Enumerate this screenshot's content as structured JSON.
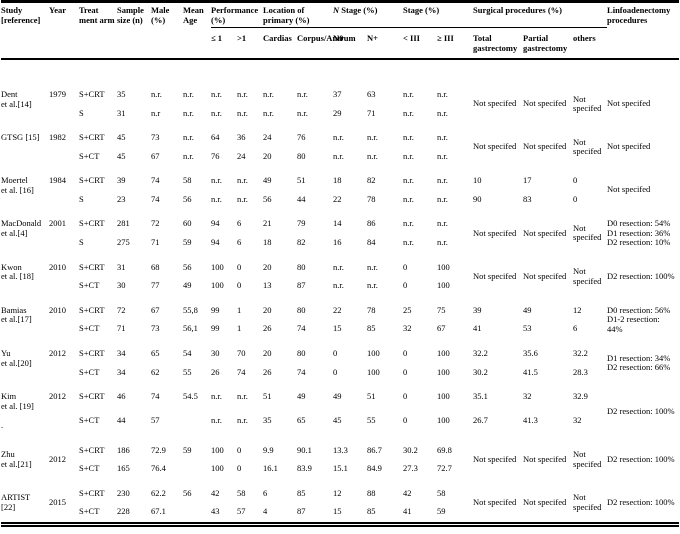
{
  "header": {
    "study": "Study [reference]",
    "year": "Year",
    "arm": "Treat ment arm",
    "sample": "Sample size (n)",
    "male": "Male (%)",
    "age": "Mean Age",
    "performance": "Performance (%)",
    "location": "Location of primary (%)",
    "nstage_n": "N",
    "nstage_rest": " Stage (%)",
    "stage": "Stage (%)",
    "surgical": "Surgical procedures (%)",
    "linfo": "Linfoadenectomy procedures",
    "sub": {
      "le1": "≤ 1",
      "gt1": ">1",
      "cardias": "Cardias",
      "corpus": "Corpus/Antrum",
      "n0": "N0",
      "nplus": "N+",
      "lt3": "< III",
      "ge3": "≥ III",
      "total": "Total gastrectomy",
      "partial": "Partial gastrectomy",
      "others": "others"
    }
  },
  "table": {
    "groups": [
      {
        "study": "Dent\net al.[14]",
        "year": "1979",
        "label_valign": "top",
        "rows": [
          {
            "arm": "S+CRT",
            "n": "35",
            "male": "n.r.",
            "age": "n.r.",
            "perf_le1": "n.r.",
            "perf_gt1": "n.r.",
            "cardias": "n.r.",
            "corpus": "n.r.",
            "n0": "37",
            "n_plus": "63",
            "stage_lt3": "n.r.",
            "stage_ge3": "n.r."
          },
          {
            "arm": "S",
            "n": "31",
            "male": "n.r",
            "age": "n.r.",
            "perf_le1": "n.r.",
            "perf_gt1": "n.r.",
            "cardias": "n.r.",
            "corpus": "n.r.",
            "n0": "29",
            "n_plus": "71",
            "stage_lt3": "n.r.",
            "stage_ge3": "n.r."
          }
        ],
        "surgical_span": {
          "total": "Not specifed",
          "partial": "Not specifed",
          "others": "Not specifed"
        },
        "linfo": "Not specifed"
      },
      {
        "study": "GTSG [15]",
        "year": "1982",
        "label_valign": "top",
        "rows": [
          {
            "arm": "S+CRT",
            "n": "45",
            "male": "73",
            "age": "n.r.",
            "perf_le1": "64",
            "perf_gt1": "36",
            "cardias": "24",
            "corpus": "76",
            "n0": "n.r.",
            "n_plus": "n.r.",
            "stage_lt3": "n.r.",
            "stage_ge3": "n.r."
          },
          {
            "arm": "S+CT",
            "n": "45",
            "male": "67",
            "age": "n.r.",
            "perf_le1": "76",
            "perf_gt1": "24",
            "cardias": "20",
            "corpus": "80",
            "n0": "n.r.",
            "n_plus": "n.r.",
            "stage_lt3": "n.r.",
            "stage_ge3": "n.r."
          }
        ],
        "surgical_span": {
          "total": "Not specifed",
          "partial": "Not specifed",
          "others": "Not specifed"
        },
        "linfo": "Not specifed"
      },
      {
        "study": "Moertel\net al. [16]",
        "year": "1984",
        "label_valign": "top",
        "rows": [
          {
            "arm": "S+CRT",
            "n": "39",
            "male": "74",
            "age": "58",
            "perf_le1": "n.r.",
            "perf_gt1": "n.r.",
            "cardias": "49",
            "corpus": "51",
            "n0": "18",
            "n_plus": "82",
            "stage_lt3": "n.r.",
            "stage_ge3": "n.r.",
            "total": "10",
            "partial": "17",
            "others": "0"
          },
          {
            "arm": "S",
            "n": "23",
            "male": "74",
            "age": "56",
            "perf_le1": "n.r.",
            "perf_gt1": "n.r.",
            "cardias": "56",
            "corpus": "44",
            "n0": "22",
            "n_plus": "78",
            "stage_lt3": "n.r.",
            "stage_ge3": "n.r.",
            "total": "90",
            "partial": "83",
            "others": "0"
          }
        ],
        "surgical_span": null,
        "linfo": "Not specifed"
      },
      {
        "study": "MacDonald\net al.[4]",
        "year": "2001",
        "label_valign": "top",
        "rows": [
          {
            "arm": "S+CRT",
            "n": "281",
            "male": "72",
            "age": "60",
            "perf_le1": "94",
            "perf_gt1": "6",
            "cardias": "21",
            "corpus": "79",
            "n0": "14",
            "n_plus": "86",
            "stage_lt3": "n.r.",
            "stage_ge3": "n.r."
          },
          {
            "arm": "S",
            "n": "275",
            "male": "71",
            "age": "59",
            "perf_le1": "94",
            "perf_gt1": "6",
            "cardias": "18",
            "corpus": "82",
            "n0": "16",
            "n_plus": "84",
            "stage_lt3": "n.r.",
            "stage_ge3": "n.r."
          }
        ],
        "surgical_span": {
          "total": "Not specifed",
          "partial": "Not specifed",
          "others": "Not specifed"
        },
        "linfo": "D0 resection: 54%\nD1 resection: 36%\nD2 resection: 10%"
      },
      {
        "study": "Kwon\net al. [18]",
        "year": "2010",
        "label_valign": "top",
        "rows": [
          {
            "arm": "S+CRT",
            "n": "31",
            "male": "68",
            "age": "56",
            "perf_le1": "100",
            "perf_gt1": "0",
            "cardias": "20",
            "corpus": "80",
            "n0": "n.r.",
            "n_plus": "n.r.",
            "stage_lt3": "0",
            "stage_ge3": "100"
          },
          {
            "arm": "S+CT",
            "n": "30",
            "male": "77",
            "age": "49",
            "perf_le1": "100",
            "perf_gt1": "0",
            "cardias": "13",
            "corpus": "87",
            "n0": "n.r.",
            "n_plus": "n.r.",
            "stage_lt3": "0",
            "stage_ge3": "100"
          }
        ],
        "surgical_span": {
          "total": "Not specifed",
          "partial": "Not specifed",
          "others": "Not specifed"
        },
        "linfo": "D2 resection: 100%"
      },
      {
        "study": "Bamias\net al.[17]",
        "year": "2010",
        "label_valign": "top",
        "rows": [
          {
            "arm": "S+CRT",
            "n": "72",
            "male": "67",
            "age": "55,8",
            "perf_le1": "99",
            "perf_gt1": "1",
            "cardias": "20",
            "corpus": "80",
            "n0": "22",
            "n_plus": "78",
            "stage_lt3": "25",
            "stage_ge3": "75",
            "total": "39",
            "partial": "49",
            "others": "12"
          },
          {
            "arm": "S+CT",
            "n": "71",
            "male": "73",
            "age": "56,1",
            "perf_le1": "99",
            "perf_gt1": "1",
            "cardias": "26",
            "corpus": "74",
            "n0": "15",
            "n_plus": "85",
            "stage_lt3": "32",
            "stage_ge3": "67",
            "total": "41",
            "partial": "53",
            "others": "6"
          }
        ],
        "surgical_span": null,
        "linfo": "D0 resection: 56%\nD1-2 resection: 44%"
      },
      {
        "study": "Yu\net al.[20]",
        "year": "2012",
        "label_valign": "top",
        "rows": [
          {
            "arm": "S+CRT",
            "n": "34",
            "male": "65",
            "age": "54",
            "perf_le1": "30",
            "perf_gt1": "70",
            "cardias": "20",
            "corpus": "80",
            "n0": "0",
            "n_plus": "100",
            "stage_lt3": "0",
            "stage_ge3": "100",
            "total": "32.2",
            "partial": "35.6",
            "others": "32.2"
          },
          {
            "arm": "S+CT",
            "n": "34",
            "male": "62",
            "age": "55",
            "perf_le1": "26",
            "perf_gt1": "74",
            "cardias": "26",
            "corpus": "74",
            "n0": "0",
            "n_plus": "100",
            "stage_lt3": "0",
            "stage_ge3": "100",
            "total": "30.2",
            "partial": "41.5",
            "others": "28.3"
          }
        ],
        "surgical_span": null,
        "linfo": "D1 resection: 34%\nD2 resection: 66%"
      },
      {
        "study": "Kim\net al. [19]",
        "study_note": ".",
        "year": "2012",
        "label_valign": "top",
        "rows": [
          {
            "arm": "S+CRT",
            "n": "46",
            "male": "74",
            "age": "54.5",
            "perf_le1": "n.r.",
            "perf_gt1": "n.r.",
            "cardias": "51",
            "corpus": "49",
            "n0": "49",
            "n_plus": "51",
            "stage_lt3": "0",
            "stage_ge3": "100",
            "total": "35.1",
            "partial": "32",
            "others": "32.9"
          },
          {
            "arm": "S+CT",
            "n": "44",
            "male": "57",
            "age": "",
            "perf_le1": "n.r.",
            "perf_gt1": "n.r.",
            "cardias": "35",
            "corpus": "65",
            "n0": "45",
            "n_plus": "55",
            "stage_lt3": "0",
            "stage_ge3": "100",
            "total": "26.7",
            "partial": "41.3",
            "others": "32"
          }
        ],
        "surgical_span": null,
        "linfo": "D2 resection: 100%"
      },
      {
        "study": "Zhu\net al.[21]",
        "year": "2012",
        "label_valign": "middle",
        "rows": [
          {
            "arm": "S+CRT",
            "n": "186",
            "male": "72.9",
            "age": "59",
            "perf_le1": "100",
            "perf_gt1": "0",
            "cardias": "9.9",
            "corpus": "90.1",
            "n0": "13.3",
            "n_plus": "86.7",
            "stage_lt3": "30.2",
            "stage_ge3": "69.8"
          },
          {
            "arm": "S+CT",
            "n": "165",
            "male": "76.4",
            "age": "",
            "perf_le1": "100",
            "perf_gt1": "0",
            "cardias": "16.1",
            "corpus": "83.9",
            "n0": "15.1",
            "n_plus": "84.9",
            "stage_lt3": "27.3",
            "stage_ge3": "72.7"
          }
        ],
        "surgical_span": {
          "total": "Not specifed",
          "partial": "Not specifed",
          "others": "Not specifed"
        },
        "linfo": "D2 resection: 100%"
      },
      {
        "study": "ARTIST\n[22]",
        "year": "2015",
        "label_valign": "middle",
        "age_span": "56",
        "rows": [
          {
            "arm": "S+CRT",
            "n": "230",
            "male": "62.2",
            "perf_le1": "42",
            "perf_gt1": "58",
            "cardias": "6",
            "corpus": "85",
            "n0": "12",
            "n_plus": "88",
            "stage_lt3": "42",
            "stage_ge3": "58"
          },
          {
            "arm": "S+CT",
            "n": "228",
            "male": "67.1",
            "perf_le1": "43",
            "perf_gt1": "57",
            "cardias": "4",
            "corpus": "87",
            "n0": "15",
            "n_plus": "85",
            "stage_lt3": "41",
            "stage_ge3": "59"
          }
        ],
        "surgical_span": {
          "total": "Not specifed",
          "partial": "Not specifed",
          "others": "Not specifed"
        },
        "linfo": "D2 resection: 100%"
      }
    ]
  }
}
